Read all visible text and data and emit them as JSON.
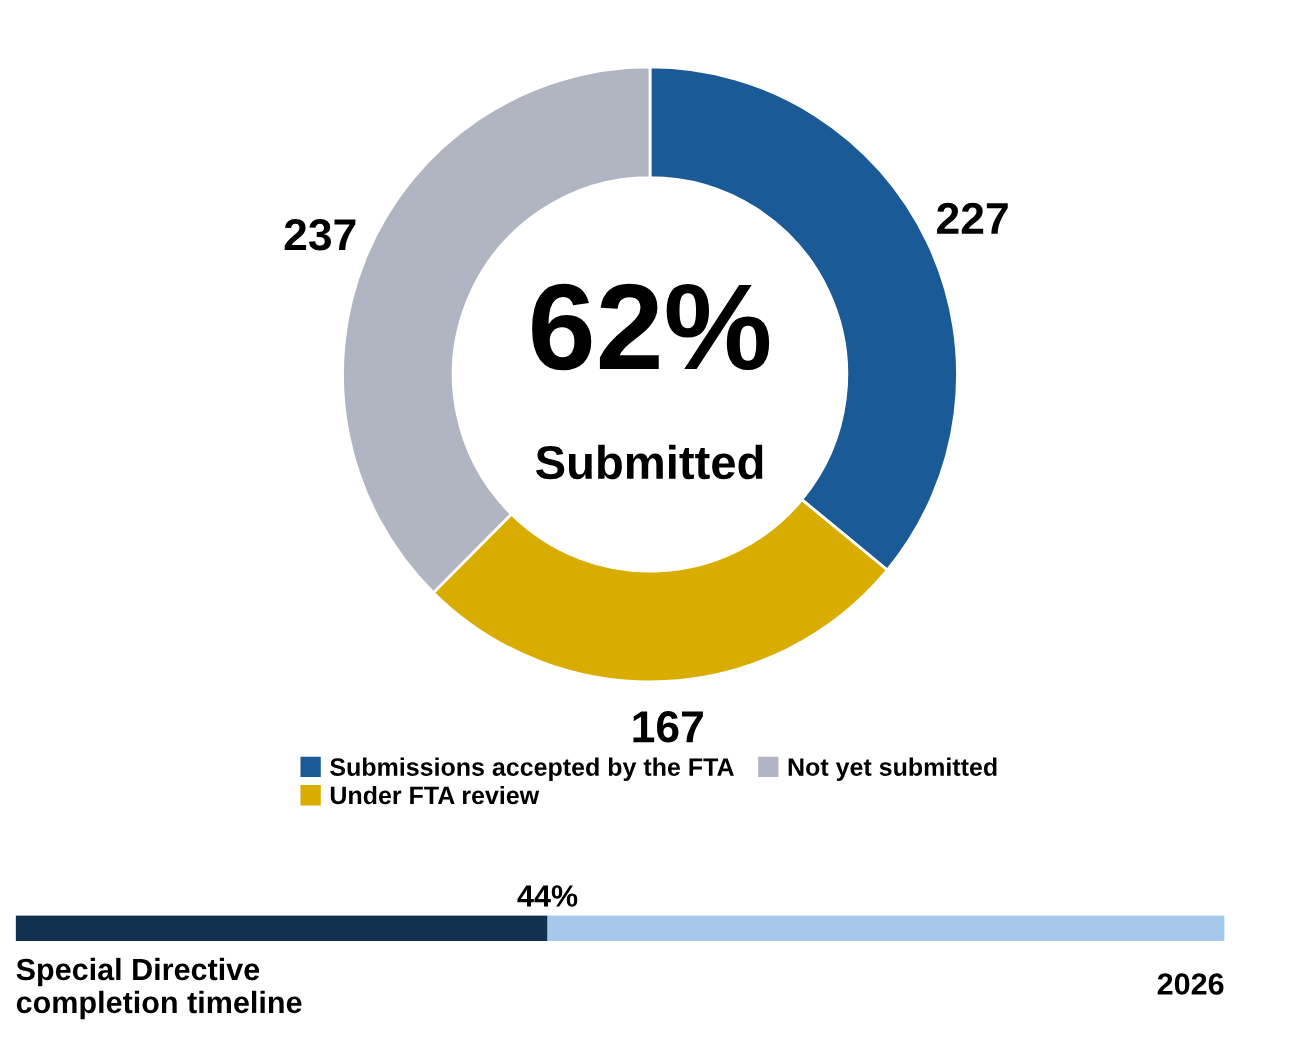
{
  "chart_data": [
    {
      "type": "donut",
      "categories": [
        "Submissions accepted by the FTA",
        "Under FTA review",
        "Not yet submitted"
      ],
      "values": [
        227,
        167,
        237
      ],
      "colors": [
        "#1a5a96",
        "#d9ad00",
        "#b0b5c1"
      ],
      "data_labels": true,
      "legend": "bottom",
      "annotations": [
        "62%",
        "Submitted"
      ]
    },
    {
      "type": "bar",
      "orientation": "horizontal",
      "stacked": true,
      "categories": [
        null
      ],
      "xlabel": "Special Directive\ncompletion timeline",
      "annotations": [
        "2026"
      ],
      "series": [
        {
          "color": "#12304f",
          "values": [
            44
          ],
          "value_labels": [
            "44%"
          ]
        },
        {
          "color": "#a6c8ec",
          "values": [
            56
          ]
        }
      ]
    }
  ]
}
